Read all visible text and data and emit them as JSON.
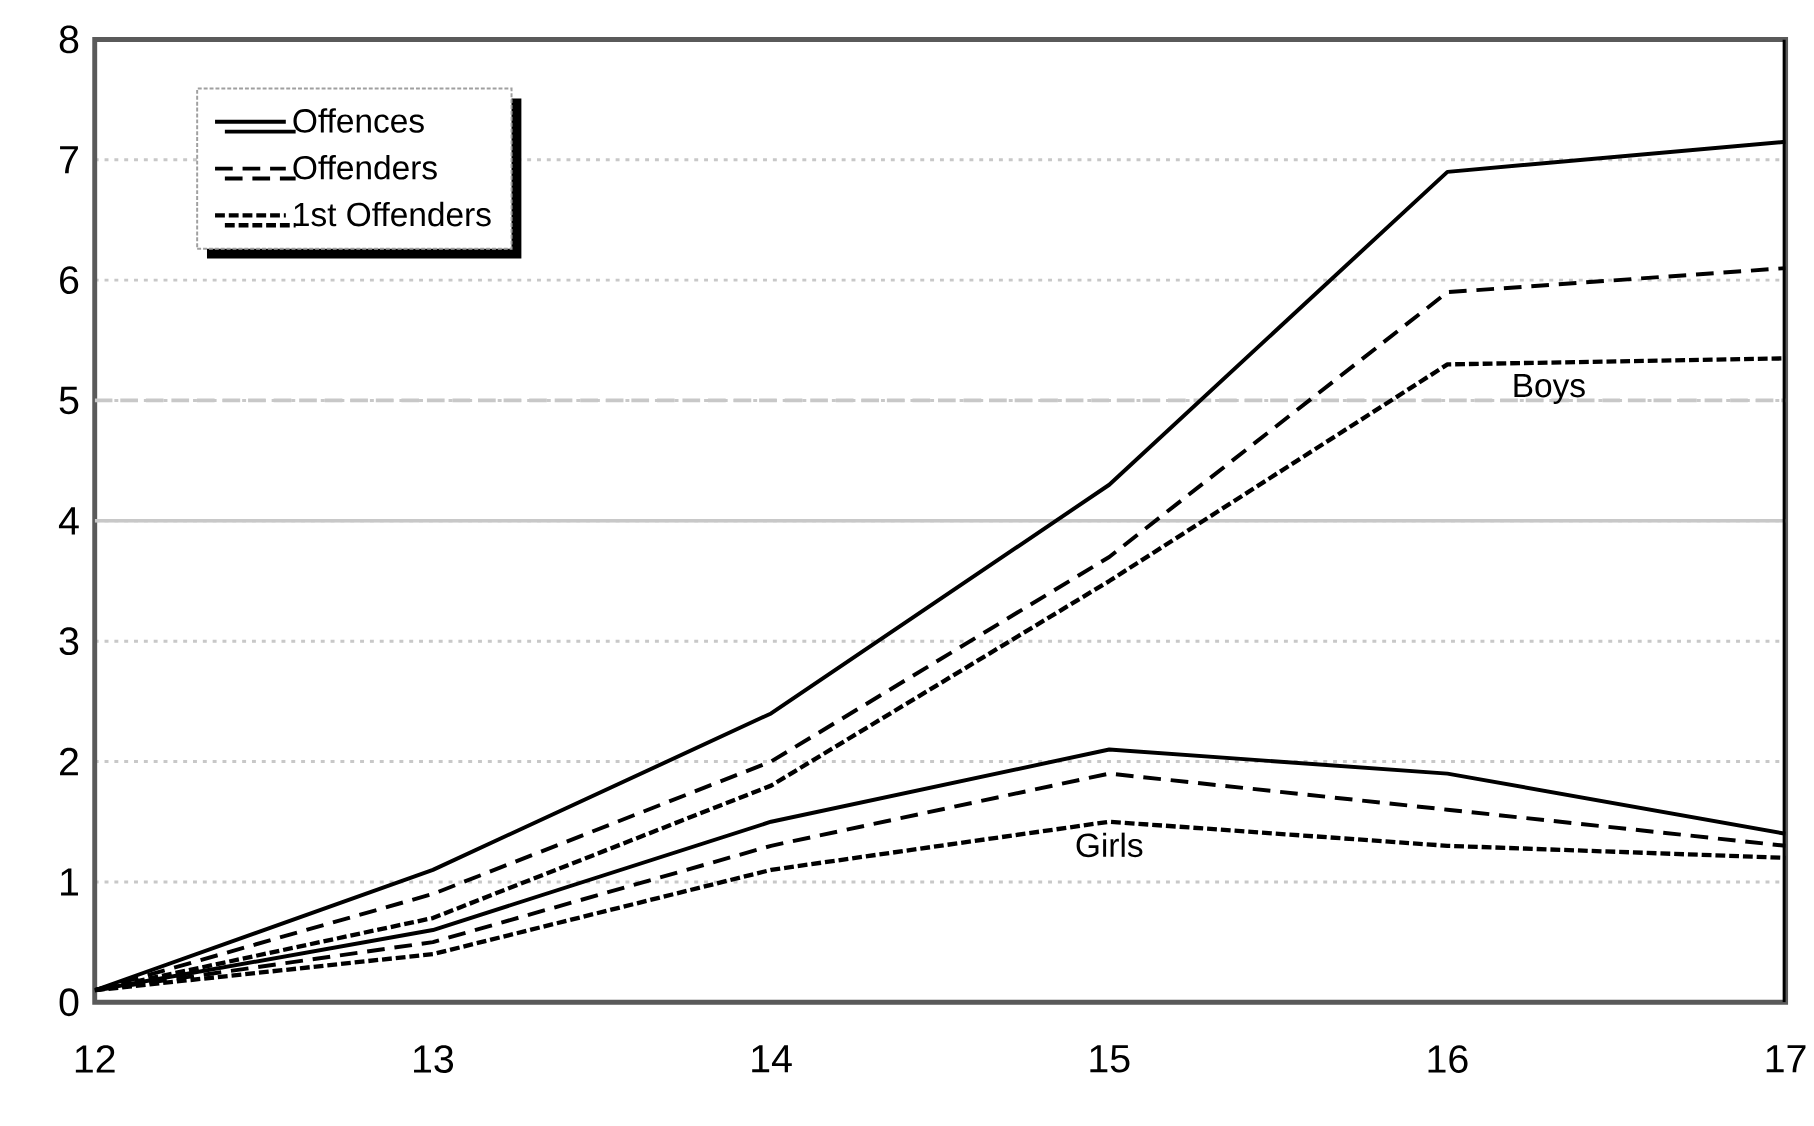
{
  "chart_data": {
    "type": "line",
    "x": [
      12,
      13,
      14,
      15,
      16,
      17
    ],
    "xlim": [
      12,
      17
    ],
    "xticks": [
      12,
      13,
      14,
      15,
      16,
      17
    ],
    "ylim": [
      0,
      8
    ],
    "yticks": [
      0,
      1,
      2,
      3,
      4,
      5,
      6,
      7,
      8
    ],
    "grid": "y",
    "legend": "top left",
    "series": [
      {
        "name": "Offences",
        "color": "#000000",
        "line_style": "solid",
        "values": [
          0.1,
          1.1,
          2.4,
          4.3,
          6.9,
          7.15
        ]
      },
      {
        "name": "Offenders",
        "color": "#000000",
        "line_style": "dashed",
        "values": [
          0.1,
          0.9,
          2.0,
          3.7,
          5.9,
          6.1
        ]
      },
      {
        "name": "1st Offenders",
        "color": "#000000",
        "line_style": "dotted",
        "values": [
          0.1,
          0.7,
          1.8,
          3.5,
          5.3,
          5.35
        ]
      },
      {
        "color": "#000000",
        "line_style": "solid",
        "values": [
          0.1,
          0.6,
          1.5,
          2.1,
          1.9,
          1.4
        ]
      },
      {
        "color": "#000000",
        "line_style": "dashed",
        "values": [
          0.1,
          0.5,
          1.3,
          1.9,
          1.6,
          1.3
        ]
      },
      {
        "color": "#000000",
        "line_style": "dotted",
        "values": [
          0.1,
          0.4,
          1.1,
          1.5,
          1.3,
          1.2
        ]
      }
    ],
    "ref_lines": [
      {
        "axis": "y",
        "value": 5,
        "color": "#c8c8c8",
        "line_style": "dashed"
      },
      {
        "axis": "y",
        "value": 4,
        "color": "#c8c8c8",
        "line_style": "solid"
      }
    ],
    "annotations": [
      {
        "text": "Boys",
        "x": 16.3,
        "y": 5.31
      },
      {
        "text": "Girls",
        "x": 15,
        "y": 1.5
      }
    ]
  }
}
